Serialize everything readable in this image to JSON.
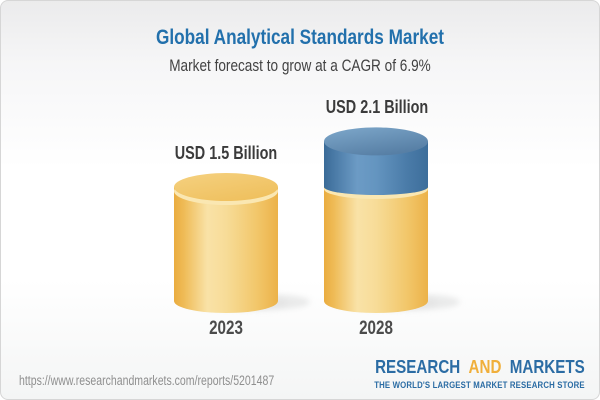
{
  "header": {
    "title": "Global Analytical Standards Market",
    "subtitle": "Market forecast to grow at a CAGR of 6.9%"
  },
  "chart_data": {
    "type": "bar",
    "variant": "3d-cylinder",
    "title": "Global Analytical Standards Market",
    "subtitle": "Market forecast to grow at a CAGR of 6.9%",
    "unit": "USD Billion",
    "cagr_percent": 6.9,
    "categories": [
      "2023",
      "2028"
    ],
    "values": [
      1.5,
      2.1
    ],
    "ylim": [
      0,
      2.4
    ],
    "grid": false,
    "legend": false,
    "bars": [
      {
        "category": "2023",
        "value": 1.5,
        "label": "USD 1.5 Billion",
        "segments": [
          {
            "value": 1.5,
            "color": "gold"
          }
        ]
      },
      {
        "category": "2028",
        "value": 2.1,
        "label": "USD 2.1 Billion",
        "segments": [
          {
            "value": 1.5,
            "color": "gold"
          },
          {
            "value": 0.6,
            "color": "blue"
          }
        ]
      }
    ],
    "colors": {
      "gold": "#F2C468",
      "blue": "#4E7FAB",
      "title_blue": "#2270AC"
    }
  },
  "footer": {
    "url": "https://www.researchandmarkets.com/reports/5201487",
    "logo": {
      "part1": "RESEARCH",
      "part2": "AND",
      "part3": "MARKETS",
      "tagline": "THE WORLD'S LARGEST MARKET RESEARCH STORE",
      "colors": {
        "blue": "#2B6CA4",
        "gold": "#F0AF3B"
      }
    }
  }
}
